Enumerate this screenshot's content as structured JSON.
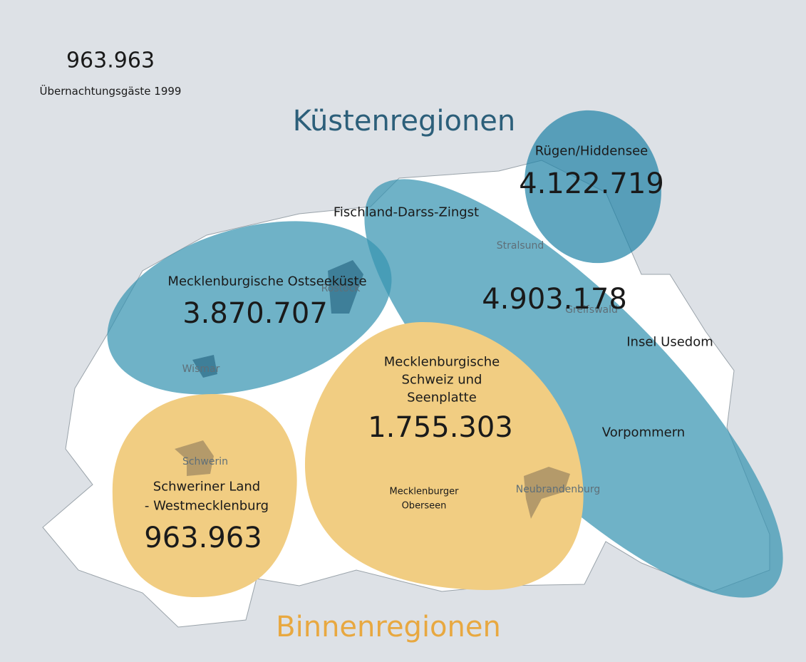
{
  "legend": {
    "value": "963.963",
    "label": "Übernachtungsgäste 1999"
  },
  "headings": {
    "coast": "Küstenregionen",
    "inland": "Binnenregionen"
  },
  "regions": [
    {
      "name": [
        "Rügen/Hiddensee"
      ],
      "value": "4.122.719"
    },
    {
      "name": [
        "Fischland-Darss-Zingst",
        "Insel Usedom",
        "Vorpommern"
      ],
      "value": "4.903.178"
    },
    {
      "name": [
        "Mecklenburgische Ostseeküste"
      ],
      "value": "3.870.707"
    },
    {
      "name": [
        "Mecklenburgische",
        "Schweiz und",
        "Seenplatte"
      ],
      "value": "1.755.303"
    },
    {
      "name": [
        "Schweriner Land",
        "- Westmecklenburg"
      ],
      "value": "963.963"
    }
  ],
  "cities": [
    "Rostock",
    "Stralsund",
    "Greifswald",
    "Wismar",
    "Schwerin",
    "Neubrandenburg"
  ],
  "lakes": [
    "Mecklenburger",
    "Oberseen"
  ]
}
